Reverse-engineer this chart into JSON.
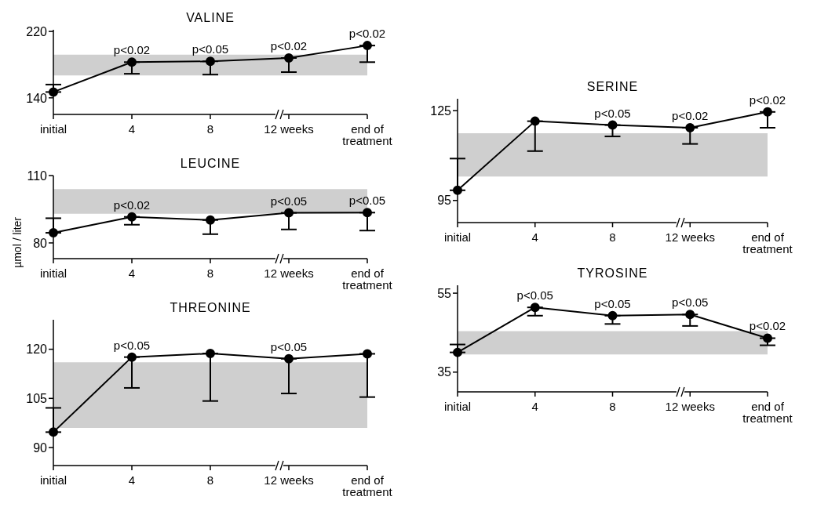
{
  "chart_data": [
    {
      "type": "line",
      "title": "VALINE",
      "categories": [
        "initial",
        "4",
        "8",
        "12 weeks",
        "end of\ntreatment"
      ],
      "ylim": [
        120,
        222
      ],
      "yticks": [
        140,
        220
      ],
      "marker": "circle",
      "line_style": "solid",
      "grid": false,
      "legend": false,
      "series": [
        {
          "color": "#000000",
          "values": [
            147,
            183,
            184,
            188,
            203
          ],
          "errors": [
            [
              147,
              156
            ],
            [
              169,
              183
            ],
            [
              168,
              184
            ],
            [
              171,
              188
            ],
            [
              183,
              203
            ]
          ]
        }
      ],
      "bands": [
        {
          "axis": "y",
          "from": 167,
          "to": 192,
          "color": "#cfcfcf"
        }
      ],
      "annotations": [
        {
          "text": "p<0.02",
          "x": "4",
          "y": 183
        },
        {
          "text": "p<0.05",
          "x": "8",
          "y": 184
        },
        {
          "text": "p<0.02",
          "x": "12 weeks",
          "y": 188
        },
        {
          "text": "p<0.02",
          "x": "end of\ntreatment",
          "y": 203
        }
      ]
    },
    {
      "type": "line",
      "title": "LEUCINE",
      "ylabel": "µmol / liter",
      "categories": [
        "initial",
        "4",
        "8",
        "12 weeks",
        "end of\ntreatment"
      ],
      "ylim": [
        73,
        110
      ],
      "yticks": [
        80,
        110
      ],
      "marker": "circle",
      "line_style": "solid",
      "grid": false,
      "legend": false,
      "series": [
        {
          "color": "#000000",
          "values": [
            84.5,
            91.6,
            90.2,
            93.4,
            93.5
          ],
          "errors": [
            [
              84.5,
              91
            ],
            [
              88.1,
              91.6
            ],
            [
              83.9,
              90.2
            ],
            [
              86,
              93.4
            ],
            [
              85.5,
              93.5
            ]
          ]
        }
      ],
      "bands": [
        {
          "axis": "y",
          "from": 93,
          "to": 104,
          "color": "#cfcfcf"
        }
      ],
      "annotations": [
        {
          "text": "p<0.02",
          "x": "4",
          "y": 91.6
        },
        {
          "text": "p<0.05",
          "x": "12 weeks",
          "y": 93.4
        },
        {
          "text": "p<0.05",
          "x": "end of\ntreatment",
          "y": 93.5
        }
      ]
    },
    {
      "type": "line",
      "title": "THREONINE",
      "categories": [
        "initial",
        "4",
        "8",
        "12 weeks",
        "end of\ntreatment"
      ],
      "ylim": [
        84.5,
        129
      ],
      "yticks": [
        90,
        105,
        120
      ],
      "marker": "circle",
      "line_style": "solid",
      "grid": false,
      "legend": false,
      "series": [
        {
          "color": "#000000",
          "values": [
            94.7,
            117.6,
            118.7,
            117.1,
            118.6
          ],
          "errors": [
            [
              94.7,
              102.1
            ],
            [
              108.2,
              117.6
            ],
            [
              104.2,
              118.7
            ],
            [
              106.5,
              117.1
            ],
            [
              105.4,
              118.6
            ]
          ]
        }
      ],
      "bands": [
        {
          "axis": "y",
          "from": 96,
          "to": 116,
          "color": "#cfcfcf"
        }
      ],
      "annotations": [
        {
          "text": "p<0.05",
          "x": "4",
          "y": 117.6
        },
        {
          "text": "p<0.05",
          "x": "12 weeks",
          "y": 117.1
        }
      ]
    },
    {
      "type": "line",
      "title": "SERINE",
      "categories": [
        "initial",
        "4",
        "8",
        "12 weeks",
        "end of\ntreatment"
      ],
      "ylim": [
        87.6,
        129
      ],
      "yticks": [
        95,
        125
      ],
      "marker": "circle",
      "line_style": "solid",
      "grid": false,
      "legend": false,
      "series": [
        {
          "color": "#000000",
          "values": [
            98.4,
            121.5,
            120.2,
            119.3,
            124.6
          ],
          "errors": [
            [
              98.4,
              109
            ],
            [
              111.5,
              121.5
            ],
            [
              116.4,
              120.2
            ],
            [
              113.9,
              119.3
            ],
            [
              119.3,
              124.6
            ]
          ]
        }
      ],
      "bands": [
        {
          "axis": "y",
          "from": 103,
          "to": 117.5,
          "color": "#cfcfcf"
        }
      ],
      "annotations": [
        {
          "text": "p<0.05",
          "x": "8",
          "y": 120.2
        },
        {
          "text": "p<0.02",
          "x": "12 weeks",
          "y": 119.3
        },
        {
          "text": "p<0.02",
          "x": "end of\ntreatment",
          "y": 124.6
        }
      ]
    },
    {
      "type": "line",
      "title": "TYROSINE",
      "categories": [
        "initial",
        "4",
        "8",
        "12 weeks",
        "end of\ntreatment"
      ],
      "ylim": [
        30,
        57
      ],
      "yticks": [
        35,
        55
      ],
      "marker": "circle",
      "line_style": "solid",
      "grid": false,
      "legend": false,
      "series": [
        {
          "color": "#000000",
          "values": [
            40,
            51.4,
            49.3,
            49.6,
            43.6
          ],
          "errors": [
            [
              40,
              42
            ],
            [
              49.3,
              51.4
            ],
            [
              47.2,
              49.3
            ],
            [
              46.7,
              49.6
            ],
            [
              41.8,
              43.6
            ]
          ]
        }
      ],
      "bands": [
        {
          "axis": "y",
          "from": 39.5,
          "to": 45.4,
          "color": "#cfcfcf"
        }
      ],
      "annotations": [
        {
          "text": "p<0.05",
          "x": "4",
          "y": 51.4
        },
        {
          "text": "p<0.05",
          "x": "8",
          "y": 49.3
        },
        {
          "text": "p<0.05",
          "x": "12 weeks",
          "y": 49.6
        },
        {
          "text": "p<0.02",
          "x": "end of\ntreatment",
          "y": 43.6
        }
      ]
    }
  ]
}
